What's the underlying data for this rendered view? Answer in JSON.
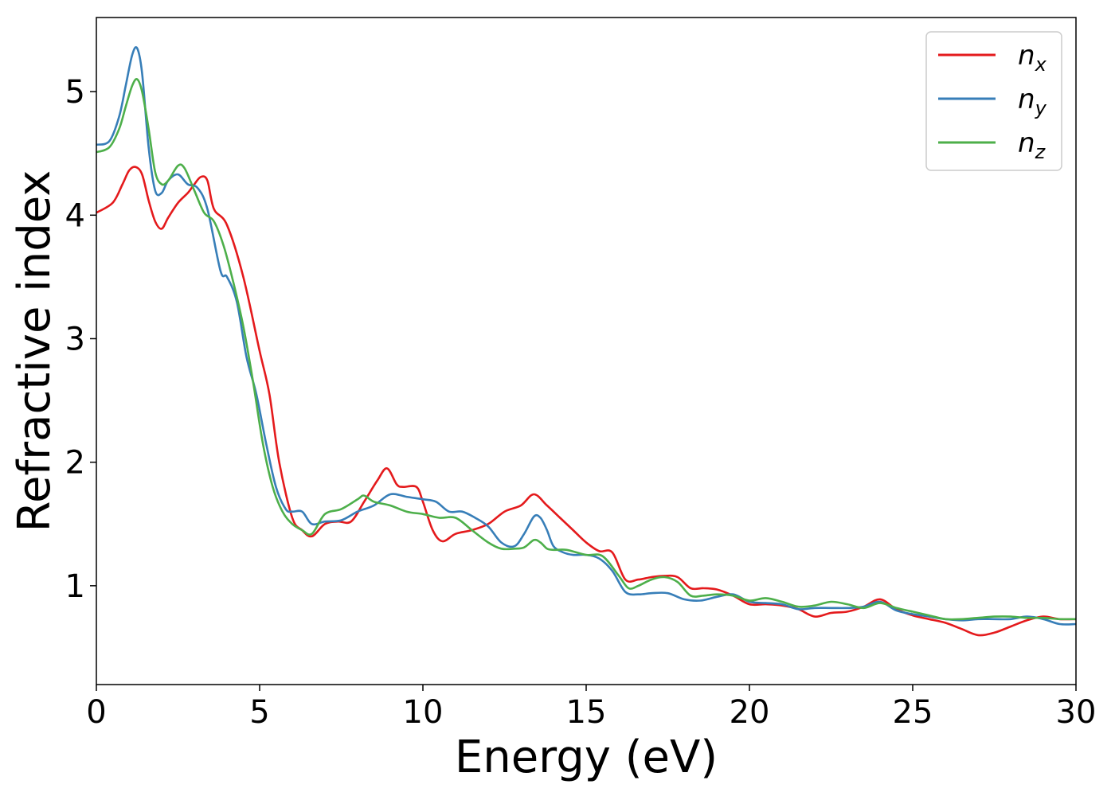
{
  "chart_data": {
    "type": "line",
    "xlabel": "Energy (eV)",
    "ylabel": "Refractive index",
    "xlim": [
      0,
      30
    ],
    "ylim": [
      0.2,
      5.6
    ],
    "xticks": [
      0,
      5,
      10,
      15,
      20,
      25,
      30
    ],
    "yticks": [
      1,
      2,
      3,
      4,
      5
    ],
    "grid": false,
    "legend_position": "top-right",
    "series": [
      {
        "name": "n",
        "subscript": "x",
        "color": "#e41a1c",
        "x": [
          0,
          0.5,
          0.8,
          1.0,
          1.2,
          1.4,
          1.6,
          1.8,
          2.0,
          2.2,
          2.5,
          2.8,
          3.0,
          3.2,
          3.4,
          3.6,
          4.0,
          4.5,
          5.0,
          5.3,
          5.6,
          6.0,
          6.3,
          6.6,
          7.0,
          7.4,
          7.8,
          8.2,
          8.6,
          8.9,
          9.2,
          9.4,
          9.8,
          10.0,
          10.3,
          10.6,
          11.0,
          11.5,
          12.0,
          12.5,
          13.0,
          13.4,
          13.8,
          14.2,
          14.6,
          15.0,
          15.4,
          15.8,
          16.2,
          16.6,
          17.0,
          17.4,
          17.8,
          18.2,
          18.6,
          19.0,
          19.5,
          20.0,
          20.5,
          21.0,
          21.5,
          22.0,
          22.5,
          23.0,
          23.5,
          24.0,
          24.5,
          25.0,
          25.5,
          26.0,
          26.5,
          27.0,
          27.5,
          28.0,
          28.5,
          29.0,
          29.5,
          30.0
        ],
        "y": [
          4.02,
          4.1,
          4.25,
          4.36,
          4.39,
          4.33,
          4.12,
          3.95,
          3.89,
          3.98,
          4.1,
          4.18,
          4.25,
          4.31,
          4.28,
          4.05,
          3.92,
          3.5,
          2.9,
          2.55,
          2.0,
          1.55,
          1.45,
          1.4,
          1.5,
          1.52,
          1.52,
          1.68,
          1.85,
          1.95,
          1.82,
          1.8,
          1.8,
          1.68,
          1.45,
          1.36,
          1.42,
          1.45,
          1.5,
          1.6,
          1.65,
          1.74,
          1.65,
          1.55,
          1.45,
          1.35,
          1.28,
          1.27,
          1.05,
          1.05,
          1.07,
          1.08,
          1.07,
          0.98,
          0.98,
          0.97,
          0.92,
          0.85,
          0.85,
          0.84,
          0.81,
          0.75,
          0.78,
          0.79,
          0.83,
          0.89,
          0.81,
          0.76,
          0.73,
          0.7,
          0.65,
          0.6,
          0.62,
          0.67,
          0.72,
          0.75,
          0.73,
          0.73
        ]
      },
      {
        "name": "n",
        "subscript": "y",
        "color": "#377eb8",
        "x": [
          0,
          0.4,
          0.7,
          0.9,
          1.1,
          1.25,
          1.4,
          1.6,
          1.8,
          2.0,
          2.2,
          2.5,
          2.8,
          3.1,
          3.4,
          3.8,
          4.0,
          4.3,
          4.6,
          4.9,
          5.2,
          5.5,
          5.8,
          6.0,
          6.3,
          6.6,
          7.0,
          7.5,
          8.0,
          8.5,
          9.0,
          9.5,
          10.0,
          10.4,
          10.8,
          11.2,
          11.6,
          12.0,
          12.4,
          12.8,
          13.1,
          13.4,
          13.6,
          13.8,
          14.0,
          14.3,
          14.6,
          15.0,
          15.4,
          15.8,
          16.2,
          16.6,
          17.0,
          17.5,
          18.0,
          18.5,
          19.0,
          19.5,
          20.0,
          20.5,
          21.0,
          21.5,
          22.0,
          22.5,
          23.0,
          23.5,
          24.0,
          24.5,
          25.0,
          25.5,
          26.0,
          26.5,
          27.0,
          27.5,
          28.0,
          28.5,
          29.0,
          29.5,
          30.0
        ],
        "y": [
          4.57,
          4.6,
          4.8,
          5.05,
          5.3,
          5.35,
          5.15,
          4.55,
          4.2,
          4.18,
          4.28,
          4.33,
          4.25,
          4.22,
          4.05,
          3.55,
          3.5,
          3.3,
          2.85,
          2.55,
          2.15,
          1.8,
          1.62,
          1.6,
          1.6,
          1.5,
          1.52,
          1.53,
          1.6,
          1.65,
          1.74,
          1.72,
          1.7,
          1.68,
          1.6,
          1.6,
          1.55,
          1.48,
          1.35,
          1.32,
          1.42,
          1.56,
          1.55,
          1.45,
          1.32,
          1.27,
          1.25,
          1.25,
          1.22,
          1.12,
          0.95,
          0.93,
          0.94,
          0.94,
          0.89,
          0.88,
          0.91,
          0.93,
          0.87,
          0.86,
          0.85,
          0.81,
          0.82,
          0.82,
          0.82,
          0.83,
          0.87,
          0.8,
          0.77,
          0.75,
          0.73,
          0.72,
          0.73,
          0.73,
          0.73,
          0.75,
          0.73,
          0.69,
          0.69
        ]
      },
      {
        "name": "n",
        "subscript": "z",
        "color": "#4daf4a",
        "x": [
          0,
          0.4,
          0.7,
          0.9,
          1.1,
          1.25,
          1.4,
          1.6,
          1.8,
          2.0,
          2.2,
          2.5,
          2.7,
          3.0,
          3.3,
          3.6,
          3.9,
          4.2,
          4.5,
          4.8,
          5.1,
          5.4,
          5.7,
          6.0,
          6.3,
          6.6,
          7.0,
          7.5,
          8.0,
          8.2,
          8.5,
          9.0,
          9.5,
          10.0,
          10.5,
          11.0,
          11.5,
          12.0,
          12.4,
          12.8,
          13.1,
          13.4,
          13.6,
          13.8,
          14.0,
          14.4,
          15.0,
          15.5,
          16.0,
          16.3,
          16.6,
          17.0,
          17.4,
          17.8,
          18.2,
          18.6,
          19.0,
          19.5,
          20.0,
          20.5,
          21.0,
          21.5,
          22.0,
          22.5,
          23.0,
          23.5,
          24.0,
          24.5,
          25.0,
          25.5,
          26.0,
          26.5,
          27.0,
          27.5,
          28.0,
          28.5,
          29.0,
          29.5,
          30.0
        ],
        "y": [
          4.51,
          4.55,
          4.7,
          4.88,
          5.05,
          5.1,
          5.0,
          4.7,
          4.35,
          4.25,
          4.28,
          4.4,
          4.38,
          4.2,
          4.02,
          3.95,
          3.75,
          3.45,
          3.1,
          2.65,
          2.15,
          1.8,
          1.6,
          1.5,
          1.45,
          1.42,
          1.58,
          1.62,
          1.7,
          1.73,
          1.68,
          1.65,
          1.6,
          1.58,
          1.55,
          1.55,
          1.45,
          1.35,
          1.3,
          1.3,
          1.31,
          1.37,
          1.35,
          1.3,
          1.29,
          1.29,
          1.25,
          1.24,
          1.08,
          0.98,
          1.0,
          1.05,
          1.07,
          1.03,
          0.92,
          0.92,
          0.93,
          0.92,
          0.88,
          0.9,
          0.87,
          0.83,
          0.84,
          0.87,
          0.85,
          0.82,
          0.86,
          0.82,
          0.79,
          0.76,
          0.73,
          0.73,
          0.74,
          0.75,
          0.75,
          0.74,
          0.74,
          0.73,
          0.73
        ]
      }
    ]
  }
}
